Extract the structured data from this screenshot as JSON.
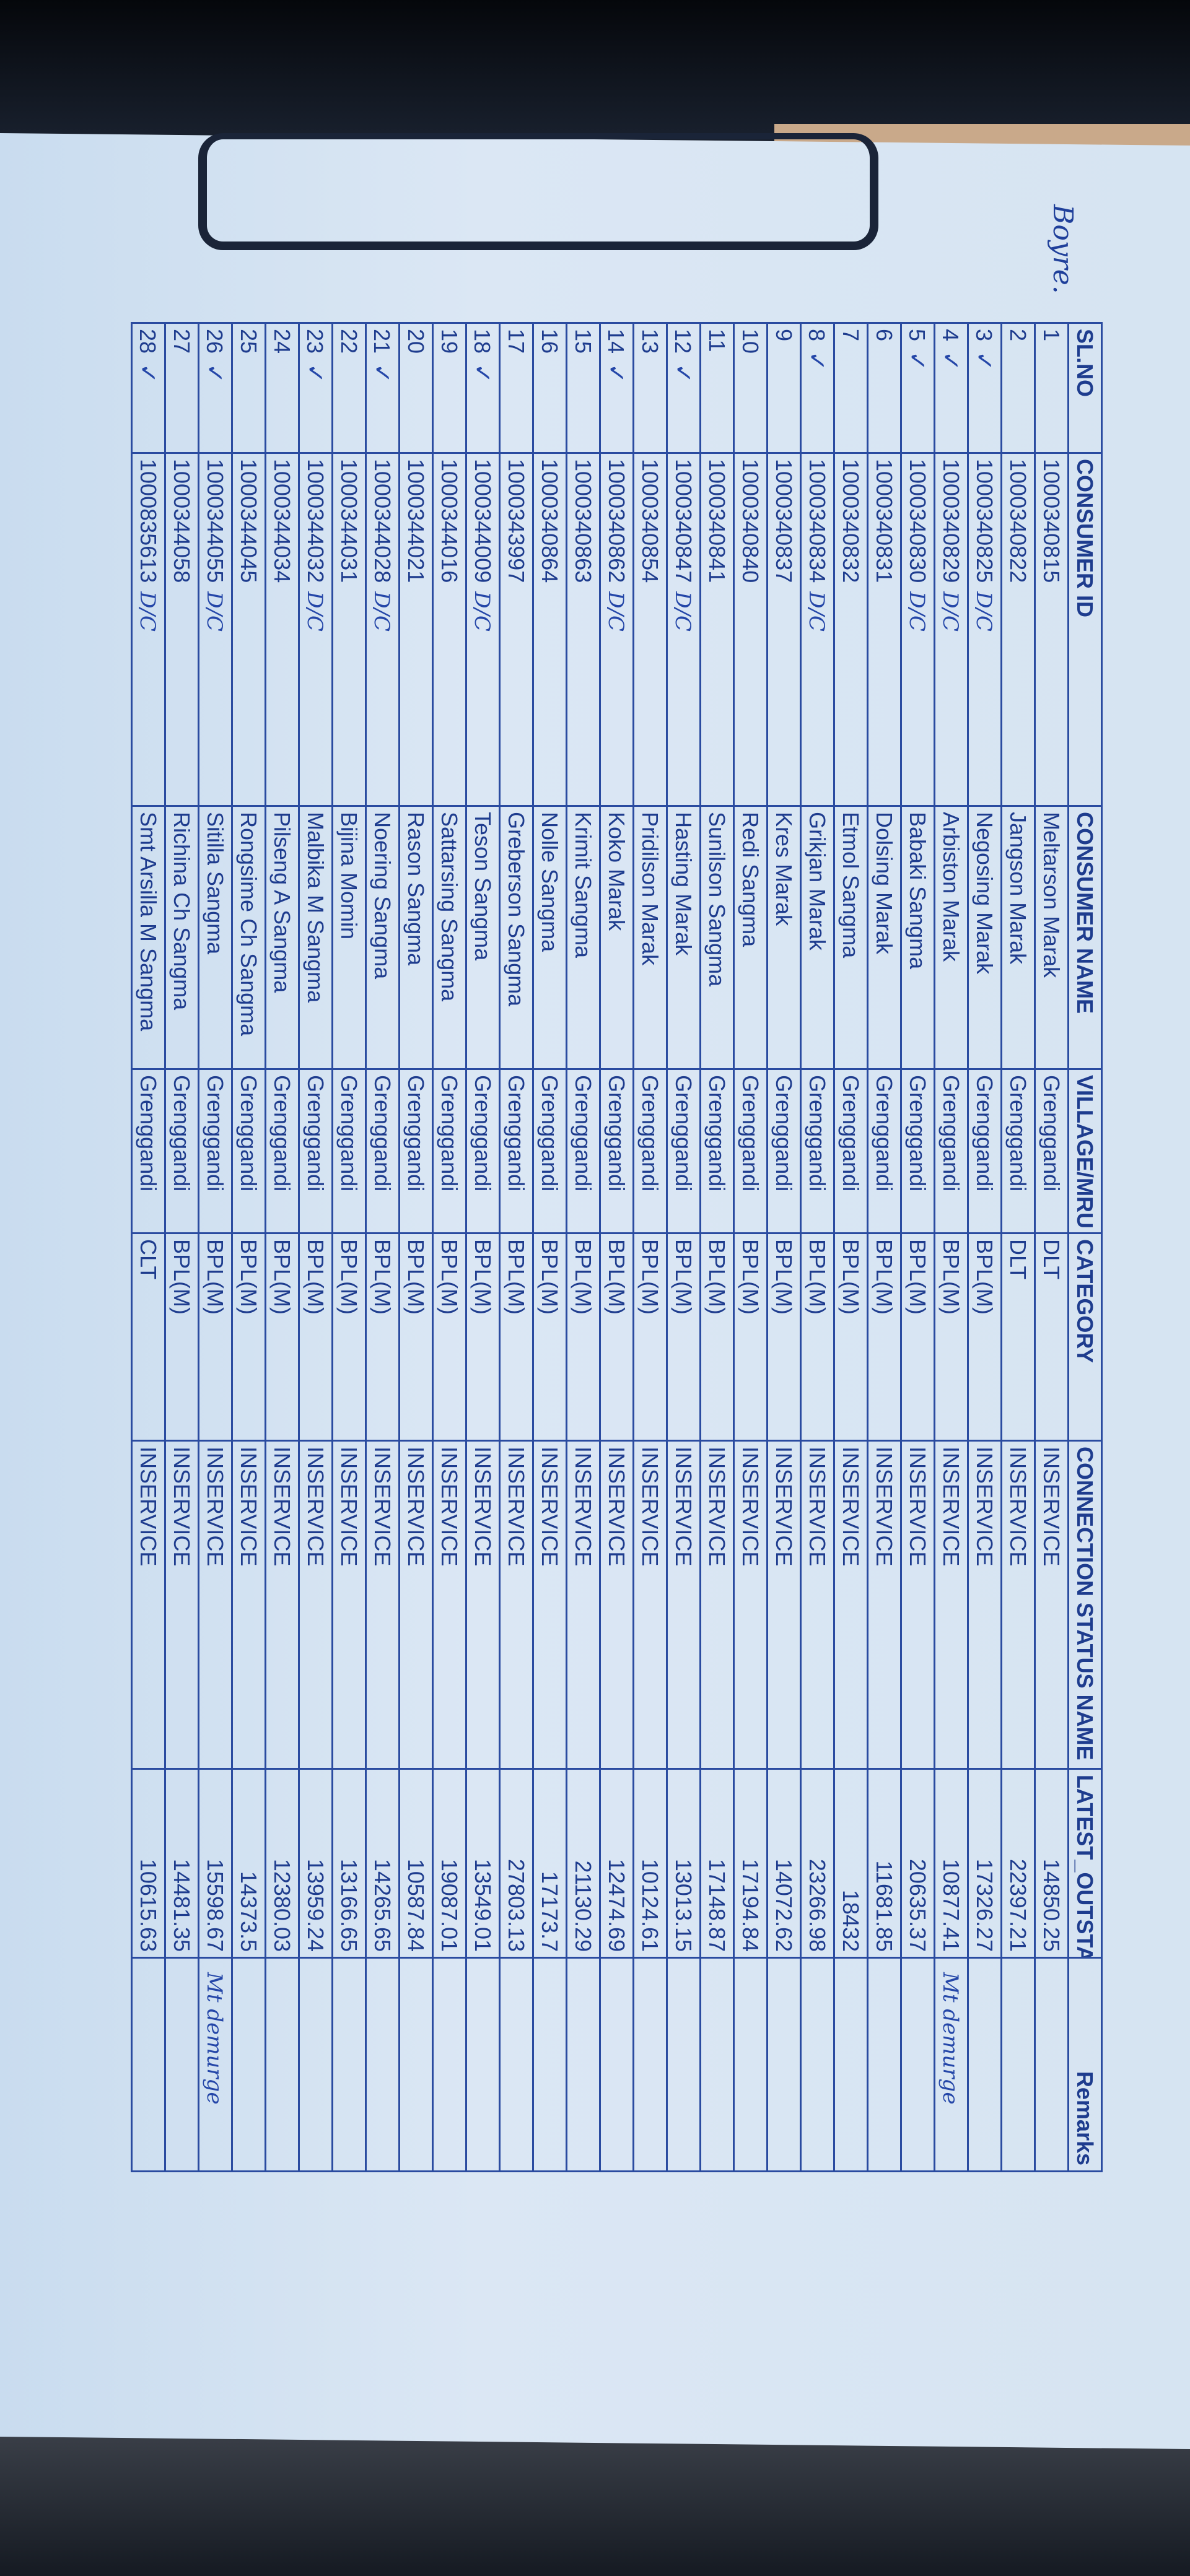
{
  "signature": "Boyre.",
  "columns": [
    "SL.NO",
    "CONSUMER ID",
    "CONSUMER NAME",
    "VILLAGE/MRU",
    "CATEGORY",
    "CONNECTION STATUS NAME",
    "LATEST_OUTSTANDING",
    "Remarks"
  ],
  "rows": [
    {
      "sl": "1",
      "id": "1000340815",
      "name": "Meltarson Marak",
      "village": "Grenggandi",
      "category": "DLT",
      "status": "INSERVICE",
      "outstanding": "14850.25",
      "remarks": "",
      "tick": false,
      "dc": ""
    },
    {
      "sl": "2",
      "id": "1000340822",
      "name": "Jangson Marak",
      "village": "Grenggandi",
      "category": "DLT",
      "status": "INSERVICE",
      "outstanding": "22397.21",
      "remarks": "",
      "tick": false,
      "dc": ""
    },
    {
      "sl": "3",
      "id": "1000340825",
      "name": "Negosing Marak",
      "village": "Grenggandi",
      "category": "BPL(M)",
      "status": "INSERVICE",
      "outstanding": "17326.27",
      "remarks": "",
      "tick": true,
      "dc": "D/C"
    },
    {
      "sl": "4",
      "id": "1000340829",
      "name": "Arbiston Marak",
      "village": "Grenggandi",
      "category": "BPL(M)",
      "status": "INSERVICE",
      "outstanding": "10877.41",
      "remarks": "Mt demurge",
      "tick": true,
      "dc": "D/C"
    },
    {
      "sl": "5",
      "id": "1000340830",
      "name": "Babaki Sangma",
      "village": "Grenggandi",
      "category": "BPL(M)",
      "status": "INSERVICE",
      "outstanding": "20635.37",
      "remarks": "",
      "tick": true,
      "dc": "D/C"
    },
    {
      "sl": "6",
      "id": "1000340831",
      "name": "Dolsing Marak",
      "village": "Grenggandi",
      "category": "BPL(M)",
      "status": "INSERVICE",
      "outstanding": "11681.85",
      "remarks": "",
      "tick": false,
      "dc": ""
    },
    {
      "sl": "7",
      "id": "1000340832",
      "name": "Etmol Sangma",
      "village": "Grenggandi",
      "category": "BPL(M)",
      "status": "INSERVICE",
      "outstanding": "18432",
      "remarks": "",
      "tick": false,
      "dc": ""
    },
    {
      "sl": "8",
      "id": "1000340834",
      "name": "Grikjan Marak",
      "village": "Grenggandi",
      "category": "BPL(M)",
      "status": "INSERVICE",
      "outstanding": "23266.98",
      "remarks": "",
      "tick": true,
      "dc": "D/C"
    },
    {
      "sl": "9",
      "id": "1000340837",
      "name": "Kres Marak",
      "village": "Grenggandi",
      "category": "BPL(M)",
      "status": "INSERVICE",
      "outstanding": "14072.62",
      "remarks": "",
      "tick": false,
      "dc": ""
    },
    {
      "sl": "10",
      "id": "1000340840",
      "name": "Redi Sangma",
      "village": "Grenggandi",
      "category": "BPL(M)",
      "status": "INSERVICE",
      "outstanding": "17194.84",
      "remarks": "",
      "tick": false,
      "dc": ""
    },
    {
      "sl": "11",
      "id": "1000340841",
      "name": "Sunilson Sangma",
      "village": "Grenggandi",
      "category": "BPL(M)",
      "status": "INSERVICE",
      "outstanding": "17148.87",
      "remarks": "",
      "tick": false,
      "dc": ""
    },
    {
      "sl": "12",
      "id": "1000340847",
      "name": "Hasting Marak",
      "village": "Grenggandi",
      "category": "BPL(M)",
      "status": "INSERVICE",
      "outstanding": "13013.15",
      "remarks": "",
      "tick": true,
      "dc": "D/C"
    },
    {
      "sl": "13",
      "id": "1000340854",
      "name": "Pridilson Marak",
      "village": "Grenggandi",
      "category": "BPL(M)",
      "status": "INSERVICE",
      "outstanding": "10124.61",
      "remarks": "",
      "tick": false,
      "dc": ""
    },
    {
      "sl": "14",
      "id": "1000340862",
      "name": "Koko Marak",
      "village": "Grenggandi",
      "category": "BPL(M)",
      "status": "INSERVICE",
      "outstanding": "12474.69",
      "remarks": "",
      "tick": true,
      "dc": "D/C"
    },
    {
      "sl": "15",
      "id": "1000340863",
      "name": "Krimit Sangma",
      "village": "Grenggandi",
      "category": "BPL(M)",
      "status": "INSERVICE",
      "outstanding": "21130.29",
      "remarks": "",
      "tick": false,
      "dc": ""
    },
    {
      "sl": "16",
      "id": "1000340864",
      "name": "Nolle Sangma",
      "village": "Grenggandi",
      "category": "BPL(M)",
      "status": "INSERVICE",
      "outstanding": "17173.7",
      "remarks": "",
      "tick": false,
      "dc": ""
    },
    {
      "sl": "17",
      "id": "1000343997",
      "name": "Greberson Sangma",
      "village": "Grenggandi",
      "category": "BPL(M)",
      "status": "INSERVICE",
      "outstanding": "27803.13",
      "remarks": "",
      "tick": false,
      "dc": ""
    },
    {
      "sl": "18",
      "id": "1000344009",
      "name": "Teson Sangma",
      "village": "Grenggandi",
      "category": "BPL(M)",
      "status": "INSERVICE",
      "outstanding": "13549.01",
      "remarks": "",
      "tick": true,
      "dc": "D/C"
    },
    {
      "sl": "19",
      "id": "1000344016",
      "name": "Sattarsing Sangma",
      "village": "Grenggandi",
      "category": "BPL(M)",
      "status": "INSERVICE",
      "outstanding": "19087.01",
      "remarks": "",
      "tick": false,
      "dc": ""
    },
    {
      "sl": "20",
      "id": "1000344021",
      "name": "Rason Sangma",
      "village": "Grenggandi",
      "category": "BPL(M)",
      "status": "INSERVICE",
      "outstanding": "10587.84",
      "remarks": "",
      "tick": false,
      "dc": ""
    },
    {
      "sl": "21",
      "id": "1000344028",
      "name": "Noering Sangma",
      "village": "Grenggandi",
      "category": "BPL(M)",
      "status": "INSERVICE",
      "outstanding": "14265.65",
      "remarks": "",
      "tick": true,
      "dc": "D/C"
    },
    {
      "sl": "22",
      "id": "1000344031",
      "name": "Bijina Momin",
      "village": "Grenggandi",
      "category": "BPL(M)",
      "status": "INSERVICE",
      "outstanding": "13166.65",
      "remarks": "",
      "tick": false,
      "dc": ""
    },
    {
      "sl": "23",
      "id": "1000344032",
      "name": "Malbika M Sangma",
      "village": "Grenggandi",
      "category": "BPL(M)",
      "status": "INSERVICE",
      "outstanding": "13959.24",
      "remarks": "",
      "tick": true,
      "dc": "D/C"
    },
    {
      "sl": "24",
      "id": "1000344034",
      "name": "Pilseng A Sangma",
      "village": "Grenggandi",
      "category": "BPL(M)",
      "status": "INSERVICE",
      "outstanding": "12380.03",
      "remarks": "",
      "tick": false,
      "dc": ""
    },
    {
      "sl": "25",
      "id": "1000344045",
      "name": "Rongsime Ch Sangma",
      "village": "Grenggandi",
      "category": "BPL(M)",
      "status": "INSERVICE",
      "outstanding": "14373.5",
      "remarks": "",
      "tick": false,
      "dc": ""
    },
    {
      "sl": "26",
      "id": "1000344055",
      "name": "Sitilla Sangma",
      "village": "Grenggandi",
      "category": "BPL(M)",
      "status": "INSERVICE",
      "outstanding": "15598.67",
      "remarks": "Mt demurge",
      "tick": true,
      "dc": "D/C"
    },
    {
      "sl": "27",
      "id": "1000344058",
      "name": "Richina Ch Sangma",
      "village": "Grenggandi",
      "category": "BPL(M)",
      "status": "INSERVICE",
      "outstanding": "14481.35",
      "remarks": "",
      "tick": false,
      "dc": ""
    },
    {
      "sl": "28",
      "id": "1000835613",
      "name": "Smt Arsilla M Sangma",
      "village": "Grenggandi",
      "category": "CLT",
      "status": "INSERVICE",
      "outstanding": "10615.63",
      "remarks": "",
      "tick": true,
      "dc": "D/C"
    }
  ]
}
